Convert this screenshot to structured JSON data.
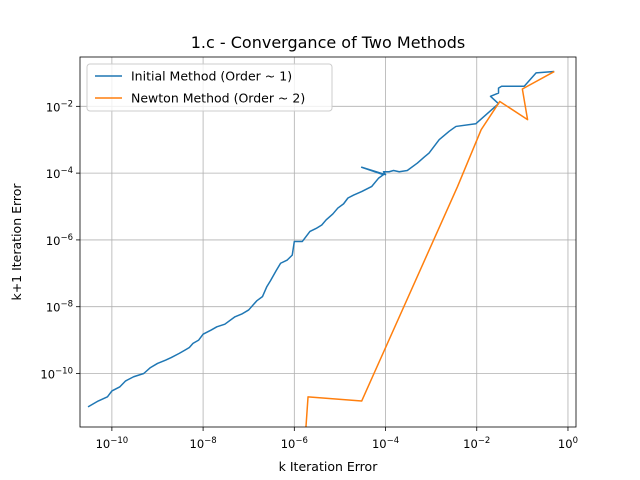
{
  "chart_data": {
    "type": "line",
    "title": "1.c - Convergance of Two Methods",
    "xlabel": "k Iteration Error",
    "ylabel": "k+1 Iteration Error",
    "xscale": "log",
    "yscale": "log",
    "xlim": [
      2e-11,
      1.5
    ],
    "ylim": [
      2.5e-12,
      0.3
    ],
    "xticks": [
      {
        "value": 1e-10,
        "base": "10",
        "exp": "−10"
      },
      {
        "value": 1e-08,
        "base": "10",
        "exp": "−8"
      },
      {
        "value": 1e-06,
        "base": "10",
        "exp": "−6"
      },
      {
        "value": 0.0001,
        "base": "10",
        "exp": "−4"
      },
      {
        "value": 0.01,
        "base": "10",
        "exp": "−2"
      },
      {
        "value": 1,
        "base": "10",
        "exp": "0"
      }
    ],
    "yticks": [
      {
        "value": 1e-10,
        "base": "10",
        "exp": "−10"
      },
      {
        "value": 1e-08,
        "base": "10",
        "exp": "−8"
      },
      {
        "value": 1e-06,
        "base": "10",
        "exp": "−6"
      },
      {
        "value": 0.0001,
        "base": "10",
        "exp": "−4"
      },
      {
        "value": 0.01,
        "base": "10",
        "exp": "−2"
      }
    ],
    "grid": true,
    "legend_position": "upper-left",
    "series": [
      {
        "name": "Initial Method (Order ~ 1)",
        "color": "#1f77b4",
        "points": [
          [
            0.5,
            0.11
          ],
          [
            0.2,
            0.1
          ],
          [
            0.11,
            0.04
          ],
          [
            0.035,
            0.04
          ],
          [
            0.03,
            0.035
          ],
          [
            0.03,
            0.025
          ],
          [
            0.02,
            0.02
          ],
          [
            0.03,
            0.012
          ],
          [
            0.0095,
            0.003
          ],
          [
            0.0035,
            0.0025
          ],
          [
            0.0025,
            0.0018
          ],
          [
            0.0015,
            0.001
          ],
          [
            0.0009,
            0.0004
          ],
          [
            0.0007,
            0.0003
          ],
          [
            0.0005,
            0.0002
          ],
          [
            0.0003,
            0.00012
          ],
          [
            0.0002,
            0.00011
          ],
          [
            0.00015,
            0.00012
          ],
          [
            0.00012,
            0.00011
          ],
          [
            9e-05,
            0.00011
          ],
          [
            0.0001,
            9e-05
          ],
          [
            3e-05,
            0.00015
          ],
          [
            9e-05,
            9e-05
          ],
          [
            7e-05,
            7e-05
          ],
          [
            5e-05,
            4e-05
          ],
          [
            3e-05,
            2.8e-05
          ],
          [
            2e-05,
            2.2e-05
          ],
          [
            1.5e-05,
            1.8e-05
          ],
          [
            1.2e-05,
            1.2e-05
          ],
          [
            9e-06,
            9e-06
          ],
          [
            7e-06,
            6e-06
          ],
          [
            5e-06,
            4e-06
          ],
          [
            4e-06,
            2.8e-06
          ],
          [
            3e-06,
            2.2e-06
          ],
          [
            2.2e-06,
            1.8e-06
          ],
          [
            1.5e-06,
            9e-07
          ],
          [
            1e-06,
            9e-07
          ],
          [
            9e-07,
            3.5e-07
          ],
          [
            7e-07,
            2.5e-07
          ],
          [
            5e-07,
            2e-07
          ],
          [
            4e-07,
            1.2e-07
          ],
          [
            3e-07,
            6e-08
          ],
          [
            2.5e-07,
            4e-08
          ],
          [
            2e-07,
            2e-08
          ],
          [
            1.5e-07,
            1.5e-08
          ],
          [
            1e-07,
            8e-09
          ],
          [
            7e-08,
            6e-09
          ],
          [
            5e-08,
            5e-09
          ],
          [
            3e-08,
            3e-09
          ],
          [
            2e-08,
            2.5e-09
          ],
          [
            1.5e-08,
            2e-09
          ],
          [
            1e-08,
            1.5e-09
          ],
          [
            8e-09,
            1e-09
          ],
          [
            6e-09,
            8e-10
          ],
          [
            5e-09,
            6e-10
          ],
          [
            4e-09,
            5e-10
          ],
          [
            3e-09,
            4e-10
          ],
          [
            2e-09,
            3e-10
          ],
          [
            1.5e-09,
            2.5e-10
          ],
          [
            1e-09,
            2e-10
          ],
          [
            7e-10,
            1.5e-10
          ],
          [
            5e-10,
            1e-10
          ],
          [
            3e-10,
            8e-11
          ],
          [
            2e-10,
            6e-11
          ],
          [
            1.5e-10,
            4e-11
          ],
          [
            1e-10,
            3e-11
          ],
          [
            8e-11,
            2e-11
          ],
          [
            5e-11,
            1.5e-11
          ],
          [
            3e-11,
            1e-11
          ]
        ]
      },
      {
        "name": "Newton Method (Order ~ 2)",
        "color": "#ff7f0e",
        "points": [
          [
            0.5,
            0.11
          ],
          [
            0.1,
            0.033
          ],
          [
            0.13,
            0.004
          ],
          [
            0.032,
            0.014
          ],
          [
            0.0125,
            0.002
          ],
          [
            0.0038,
            4e-05
          ],
          [
            3e-05,
            1.5e-11
          ],
          [
            2e-06,
            2e-11
          ],
          [
            1.8e-06,
            2.5e-12
          ]
        ]
      }
    ]
  }
}
